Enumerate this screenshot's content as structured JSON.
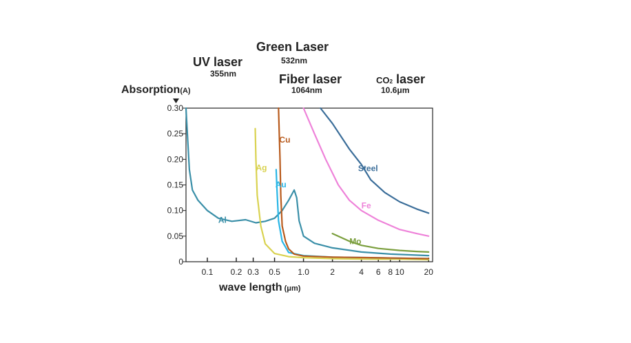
{
  "chart_data": {
    "type": "line",
    "ylabel": "Absorption",
    "ylabel_unit": "(A)",
    "xlabel": "wave length",
    "xlabel_unit": "(μm)",
    "x_scale": "log",
    "xlim": [
      0.06,
      22
    ],
    "ylim": [
      0,
      0.3
    ],
    "x_ticks": [
      {
        "value": 0.1,
        "label": "0.1"
      },
      {
        "value": 0.2,
        "label": "0.2"
      },
      {
        "value": 0.3,
        "label": "0.3"
      },
      {
        "value": 0.5,
        "label": "0.5"
      },
      {
        "value": 1.0,
        "label": "1.0"
      },
      {
        "value": 2,
        "label": "2"
      },
      {
        "value": 4,
        "label": "4"
      },
      {
        "value": 6,
        "label": "6"
      },
      {
        "value": 8,
        "label": "8"
      },
      {
        "value": 10,
        "label": "10"
      },
      {
        "value": 20,
        "label": "20"
      }
    ],
    "y_ticks": [
      {
        "value": 0.3,
        "label": "0.30"
      },
      {
        "value": 0.25,
        "label": "0.25"
      },
      {
        "value": 0.2,
        "label": "0.20"
      },
      {
        "value": 0.15,
        "label": "0.15"
      },
      {
        "value": 0.1,
        "label": "0.10"
      },
      {
        "value": 0.05,
        "label": "0.05"
      },
      {
        "value": 0,
        "label": "0"
      }
    ],
    "lasers": [
      {
        "name": "UV laser",
        "wavelength": "355nm"
      },
      {
        "name": "Green Laser",
        "wavelength": "532nm"
      },
      {
        "name": "Fiber laser",
        "wavelength": "1064nm"
      },
      {
        "name_prefix": "CO",
        "name_sub": "2",
        "name_suffix": " laser",
        "wavelength": "10.6μm"
      }
    ],
    "series": [
      {
        "name": "Al",
        "color": "#3a8fa8",
        "points": [
          [
            0.06,
            0.3
          ],
          [
            0.062,
            0.25
          ],
          [
            0.065,
            0.18
          ],
          [
            0.07,
            0.14
          ],
          [
            0.08,
            0.12
          ],
          [
            0.1,
            0.1
          ],
          [
            0.13,
            0.085
          ],
          [
            0.18,
            0.079
          ],
          [
            0.25,
            0.082
          ],
          [
            0.32,
            0.076
          ],
          [
            0.4,
            0.079
          ],
          [
            0.5,
            0.085
          ],
          [
            0.6,
            0.1
          ],
          [
            0.7,
            0.12
          ],
          [
            0.8,
            0.14
          ],
          [
            0.85,
            0.125
          ],
          [
            0.9,
            0.08
          ],
          [
            1.0,
            0.05
          ],
          [
            1.3,
            0.036
          ],
          [
            2,
            0.027
          ],
          [
            4,
            0.019
          ],
          [
            8,
            0.015
          ],
          [
            20,
            0.012
          ]
        ]
      },
      {
        "name": "Ag",
        "color": "#d9d250",
        "points": [
          [
            0.315,
            0.26
          ],
          [
            0.32,
            0.2
          ],
          [
            0.33,
            0.13
          ],
          [
            0.36,
            0.07
          ],
          [
            0.4,
            0.035
          ],
          [
            0.5,
            0.016
          ],
          [
            0.7,
            0.01
          ],
          [
            1,
            0.008
          ],
          [
            2,
            0.006
          ],
          [
            5,
            0.005
          ],
          [
            10,
            0.005
          ],
          [
            20,
            0.004
          ]
        ]
      },
      {
        "name": "Au",
        "color": "#29b6e6",
        "points": [
          [
            0.52,
            0.18
          ],
          [
            0.53,
            0.14
          ],
          [
            0.55,
            0.08
          ],
          [
            0.6,
            0.04
          ],
          [
            0.7,
            0.018
          ],
          [
            1,
            0.012
          ],
          [
            2,
            0.009
          ],
          [
            5,
            0.008
          ],
          [
            10,
            0.007
          ],
          [
            20,
            0.006
          ]
        ]
      },
      {
        "name": "Cu",
        "color": "#b85a1c",
        "points": [
          [
            0.55,
            0.3
          ],
          [
            0.56,
            0.25
          ],
          [
            0.57,
            0.2
          ],
          [
            0.58,
            0.13
          ],
          [
            0.6,
            0.07
          ],
          [
            0.65,
            0.04
          ],
          [
            0.7,
            0.025
          ],
          [
            0.8,
            0.015
          ],
          [
            1,
            0.011
          ],
          [
            2,
            0.009
          ],
          [
            5,
            0.008
          ],
          [
            10,
            0.007
          ],
          [
            20,
            0.006
          ]
        ]
      },
      {
        "name": "Steel",
        "color": "#3a6d99",
        "points": [
          [
            1.5,
            0.3
          ],
          [
            2,
            0.27
          ],
          [
            3,
            0.22
          ],
          [
            4,
            0.19
          ],
          [
            5,
            0.16
          ],
          [
            7,
            0.135
          ],
          [
            10,
            0.117
          ],
          [
            15,
            0.103
          ],
          [
            20,
            0.095
          ]
        ]
      },
      {
        "name": "Fe",
        "color": "#ee82d9",
        "points": [
          [
            1.0,
            0.3
          ],
          [
            1.3,
            0.25
          ],
          [
            1.7,
            0.2
          ],
          [
            2.3,
            0.15
          ],
          [
            3,
            0.12
          ],
          [
            4,
            0.1
          ],
          [
            6,
            0.081
          ],
          [
            10,
            0.063
          ],
          [
            15,
            0.055
          ],
          [
            20,
            0.05
          ]
        ]
      },
      {
        "name": "Mo",
        "color": "#7a9e3c",
        "points": [
          [
            2,
            0.055
          ],
          [
            3,
            0.04
          ],
          [
            4,
            0.032
          ],
          [
            6,
            0.026
          ],
          [
            10,
            0.022
          ],
          [
            15,
            0.02
          ],
          [
            20,
            0.019
          ]
        ]
      }
    ],
    "series_labels": [
      {
        "name": "Al",
        "color": "#3a8fa8",
        "x": 0.13,
        "y": 0.076
      },
      {
        "name": "Ag",
        "color": "#d9d250",
        "x": 0.32,
        "y": 0.178
      },
      {
        "name": "Au",
        "color": "#29b6e6",
        "x": 0.51,
        "y": 0.145
      },
      {
        "name": "Cu",
        "color": "#b85a1c",
        "x": 0.56,
        "y": 0.233
      },
      {
        "name": "Steel",
        "color": "#3a6d99",
        "x": 3.7,
        "y": 0.177
      },
      {
        "name": "Fe",
        "color": "#ee82d9",
        "x": 4.0,
        "y": 0.104
      },
      {
        "name": "Mo",
        "color": "#7a9e3c",
        "x": 3.0,
        "y": 0.034
      }
    ],
    "grid": false,
    "legend": "none"
  }
}
